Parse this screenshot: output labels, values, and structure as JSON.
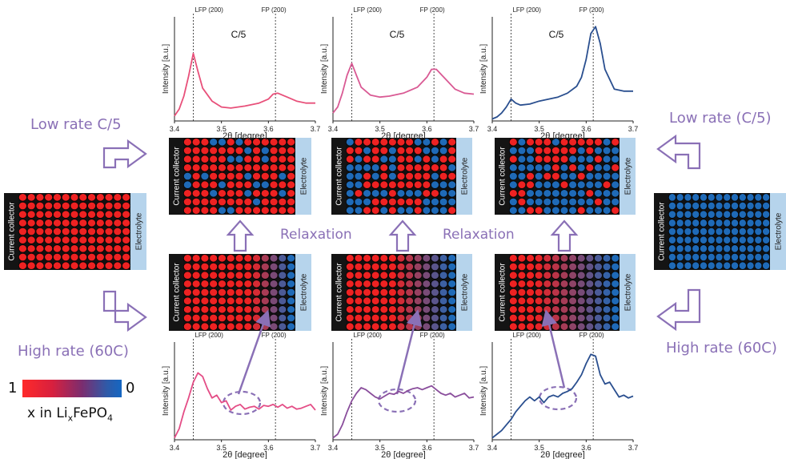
{
  "side_labels": {
    "low_rate_left": "Low rate C/5",
    "high_rate_left": "High rate (60C)",
    "low_rate_right": "Low rate (C/5)",
    "high_rate_right": "High rate (60C)"
  },
  "relaxation_label": "Relaxation",
  "cell_labels": {
    "collector": "Current collector",
    "electrolyte": "Electrolyte"
  },
  "legend": {
    "one": "1",
    "zero": "0",
    "variable": "x in Li",
    "sub_x": "x",
    "formula_rest": "FePO",
    "sub_4": "4",
    "color_high": "#ff2a2a",
    "color_low": "#1567c2"
  },
  "colors": {
    "red_particle": "#ee2222",
    "blue_particle": "#1f6ab7",
    "electrolyte": "#b6d4ec",
    "collector": "#141414",
    "arrow": "#8a70b6",
    "low_rate_curves": [
      "#e8507a",
      "#d95a94",
      "#2a4f8f"
    ],
    "high_rate_curves": [
      "#e44d86",
      "#8a4e9c",
      "#2a4f8f"
    ]
  },
  "chart_data": [
    {
      "type": "line",
      "title": "C/5",
      "xlabel": "2θ [degree]",
      "ylabel": "Intensity [a.u.]",
      "xlim": [
        3.4,
        3.7
      ],
      "xticks": [
        "3.4",
        "3.5",
        "3.6",
        "3.7"
      ],
      "annotations": [
        {
          "text": "LFP (200)",
          "x": 3.44
        },
        {
          "text": "FP (200)",
          "x": 3.615
        }
      ],
      "series": [
        {
          "x": [
            3.4,
            3.41,
            3.42,
            3.43,
            3.44,
            3.45,
            3.46,
            3.48,
            3.5,
            3.52,
            3.55,
            3.58,
            3.6,
            3.61,
            3.62,
            3.64,
            3.66,
            3.68,
            3.7
          ],
          "y": [
            0.05,
            0.12,
            0.25,
            0.45,
            0.68,
            0.5,
            0.33,
            0.2,
            0.14,
            0.13,
            0.15,
            0.18,
            0.22,
            0.27,
            0.28,
            0.24,
            0.2,
            0.18,
            0.18
          ]
        }
      ]
    },
    {
      "type": "line",
      "title": "C/5",
      "xlabel": "2θ [degree]",
      "ylabel": "Intensity [a.u.]",
      "xlim": [
        3.4,
        3.7
      ],
      "xticks": [
        "3.4",
        "3.5",
        "3.6",
        "3.7"
      ],
      "annotations": [
        {
          "text": "LFP (200)",
          "x": 3.44
        },
        {
          "text": "FP (200)",
          "x": 3.615
        }
      ],
      "series": [
        {
          "x": [
            3.4,
            3.41,
            3.42,
            3.43,
            3.44,
            3.45,
            3.46,
            3.48,
            3.5,
            3.52,
            3.55,
            3.58,
            3.6,
            3.61,
            3.62,
            3.64,
            3.66,
            3.68,
            3.7
          ],
          "y": [
            0.08,
            0.14,
            0.28,
            0.46,
            0.58,
            0.46,
            0.34,
            0.26,
            0.24,
            0.25,
            0.28,
            0.34,
            0.44,
            0.52,
            0.52,
            0.42,
            0.32,
            0.28,
            0.27
          ]
        }
      ]
    },
    {
      "type": "line",
      "title": "C/5",
      "xlabel": "2θ [degree]",
      "ylabel": "Intensity [a.u.]",
      "xlim": [
        3.4,
        3.7
      ],
      "xticks": [
        "3.4",
        "3.5",
        "3.6",
        "3.7"
      ],
      "annotations": [
        {
          "text": "LFP (200)",
          "x": 3.44
        },
        {
          "text": "FP (200)",
          "x": 3.615
        }
      ],
      "series": [
        {
          "x": [
            3.4,
            3.41,
            3.42,
            3.43,
            3.44,
            3.45,
            3.46,
            3.48,
            3.5,
            3.52,
            3.54,
            3.56,
            3.58,
            3.59,
            3.6,
            3.61,
            3.62,
            3.63,
            3.64,
            3.66,
            3.68,
            3.7
          ],
          "y": [
            0.02,
            0.04,
            0.08,
            0.14,
            0.22,
            0.18,
            0.16,
            0.17,
            0.2,
            0.22,
            0.24,
            0.28,
            0.35,
            0.44,
            0.62,
            0.88,
            0.95,
            0.78,
            0.52,
            0.32,
            0.3,
            0.3
          ]
        }
      ]
    },
    {
      "type": "line",
      "xlabel": "2θ [degree]",
      "ylabel": "Intensity [a.u.]",
      "xlim": [
        3.4,
        3.7
      ],
      "xticks": [
        "3.4",
        "3.5",
        "3.6",
        "3.7"
      ],
      "annotations": [
        {
          "text": "LFP (200)",
          "x": 3.44
        },
        {
          "text": "FP (200)",
          "x": 3.615
        }
      ],
      "series": [
        {
          "x": [
            3.4,
            3.41,
            3.42,
            3.43,
            3.44,
            3.45,
            3.46,
            3.47,
            3.48,
            3.49,
            3.5,
            3.51,
            3.52,
            3.53,
            3.54,
            3.55,
            3.56,
            3.57,
            3.58,
            3.59,
            3.6,
            3.61,
            3.62,
            3.63,
            3.64,
            3.65,
            3.66,
            3.67,
            3.68,
            3.69,
            3.7
          ],
          "y": [
            0.02,
            0.12,
            0.3,
            0.45,
            0.62,
            0.72,
            0.68,
            0.55,
            0.45,
            0.48,
            0.4,
            0.42,
            0.32,
            0.36,
            0.38,
            0.33,
            0.35,
            0.36,
            0.33,
            0.37,
            0.36,
            0.38,
            0.35,
            0.38,
            0.34,
            0.36,
            0.33,
            0.34,
            0.36,
            0.38,
            0.32
          ]
        }
      ]
    },
    {
      "type": "line",
      "xlabel": "2θ [degree]",
      "ylabel": "Intensity [a.u.]",
      "xlim": [
        3.4,
        3.7
      ],
      "xticks": [
        "3.4",
        "3.5",
        "3.6",
        "3.7"
      ],
      "annotations": [
        {
          "text": "LFP (200)",
          "x": 3.44
        },
        {
          "text": "FP (200)",
          "x": 3.615
        }
      ],
      "series": [
        {
          "x": [
            3.4,
            3.41,
            3.42,
            3.43,
            3.44,
            3.45,
            3.46,
            3.47,
            3.48,
            3.49,
            3.5,
            3.51,
            3.52,
            3.53,
            3.54,
            3.55,
            3.56,
            3.57,
            3.58,
            3.59,
            3.6,
            3.61,
            3.62,
            3.63,
            3.64,
            3.65,
            3.66,
            3.67,
            3.68,
            3.69,
            3.7
          ],
          "y": [
            0.02,
            0.06,
            0.16,
            0.3,
            0.42,
            0.5,
            0.56,
            0.54,
            0.5,
            0.46,
            0.44,
            0.47,
            0.5,
            0.49,
            0.52,
            0.5,
            0.53,
            0.55,
            0.56,
            0.54,
            0.56,
            0.58,
            0.54,
            0.5,
            0.48,
            0.5,
            0.46,
            0.48,
            0.5,
            0.45,
            0.46
          ]
        }
      ]
    },
    {
      "type": "line",
      "xlabel": "2θ [degree]",
      "ylabel": "Intensity [a.u.]",
      "xlim": [
        3.4,
        3.7
      ],
      "xticks": [
        "3.4",
        "3.5",
        "3.6",
        "3.7"
      ],
      "annotations": [
        {
          "text": "LFP (200)",
          "x": 3.44
        },
        {
          "text": "FP (200)",
          "x": 3.615
        }
      ],
      "series": [
        {
          "x": [
            3.4,
            3.41,
            3.42,
            3.43,
            3.44,
            3.45,
            3.46,
            3.47,
            3.48,
            3.49,
            3.5,
            3.51,
            3.52,
            3.53,
            3.54,
            3.55,
            3.56,
            3.57,
            3.58,
            3.59,
            3.6,
            3.61,
            3.62,
            3.63,
            3.64,
            3.65,
            3.66,
            3.67,
            3.68,
            3.69,
            3.7
          ],
          "y": [
            0.02,
            0.06,
            0.1,
            0.16,
            0.22,
            0.3,
            0.36,
            0.42,
            0.46,
            0.42,
            0.46,
            0.4,
            0.46,
            0.48,
            0.46,
            0.5,
            0.52,
            0.55,
            0.62,
            0.7,
            0.82,
            0.92,
            0.9,
            0.7,
            0.6,
            0.62,
            0.54,
            0.46,
            0.48,
            0.45,
            0.47
          ]
        }
      ]
    }
  ]
}
